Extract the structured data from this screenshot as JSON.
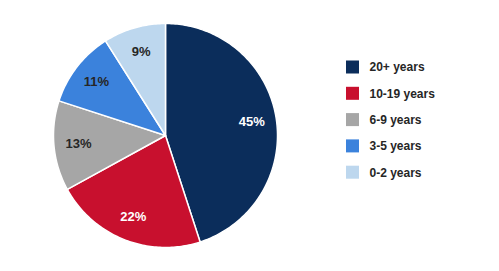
{
  "chart_data": {
    "type": "pie",
    "categories": [
      "20+ years",
      "10-19 years",
      "6-9 years",
      "3-5 years",
      "0-2 years"
    ],
    "values": [
      45,
      22,
      13,
      11,
      9
    ],
    "value_labels": [
      "45%",
      "22%",
      "13%",
      "11%",
      "9%"
    ],
    "colors": [
      "#0b2d5b",
      "#c8102e",
      "#a6a6a6",
      "#3b82dc",
      "#bdd7ee"
    ],
    "data_labels": true,
    "legend": "right"
  }
}
